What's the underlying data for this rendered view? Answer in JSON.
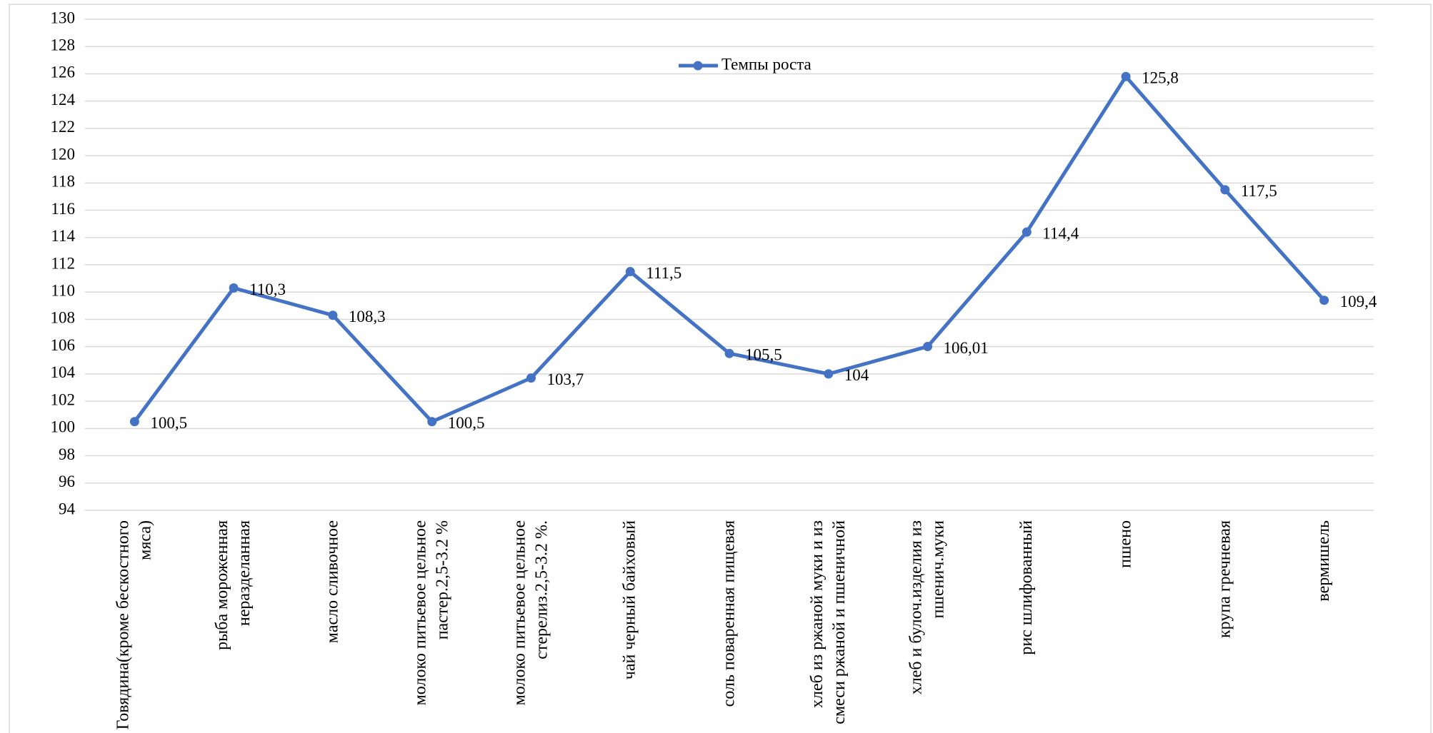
{
  "chart_data": {
    "type": "line",
    "categories": [
      "Говядина(кроме бескостного мяса)",
      "рыба мороженная неразделанная",
      "масло сливочное",
      "молоко питьевое цельное пастер.2,5-3.2 %",
      "молоко питьевое цельное стерелиз.2,5-3.2 %.",
      "чай черный байховый",
      "соль поваренная пищевая",
      "хлеб из ржаной муки и из смеси ржаной и пшеничной",
      "хлеб и булоч.изделия из пшенич.муки",
      "рис шлифованный",
      "пшено",
      "крупа гречневая",
      "вермишель"
    ],
    "series": [
      {
        "name": "Темпы роста",
        "color": "#4472c4",
        "values": [
          100.5,
          110.3,
          108.3,
          100.5,
          103.7,
          111.5,
          105.5,
          104,
          106.01,
          114.4,
          125.8,
          117.5,
          109.4
        ],
        "value_labels": [
          "100,5",
          "110,3",
          "108,3",
          "100,5",
          "103,7",
          "111,5",
          "105,5",
          "104",
          "106,01",
          "114,4",
          "125,8",
          "117,5",
          "109,4"
        ]
      }
    ],
    "ylim": [
      94,
      130
    ],
    "yticks": [
      94,
      96,
      98,
      100,
      102,
      104,
      106,
      108,
      110,
      112,
      114,
      116,
      118,
      120,
      122,
      124,
      126,
      128,
      130
    ],
    "grid": true,
    "legend": "top"
  }
}
